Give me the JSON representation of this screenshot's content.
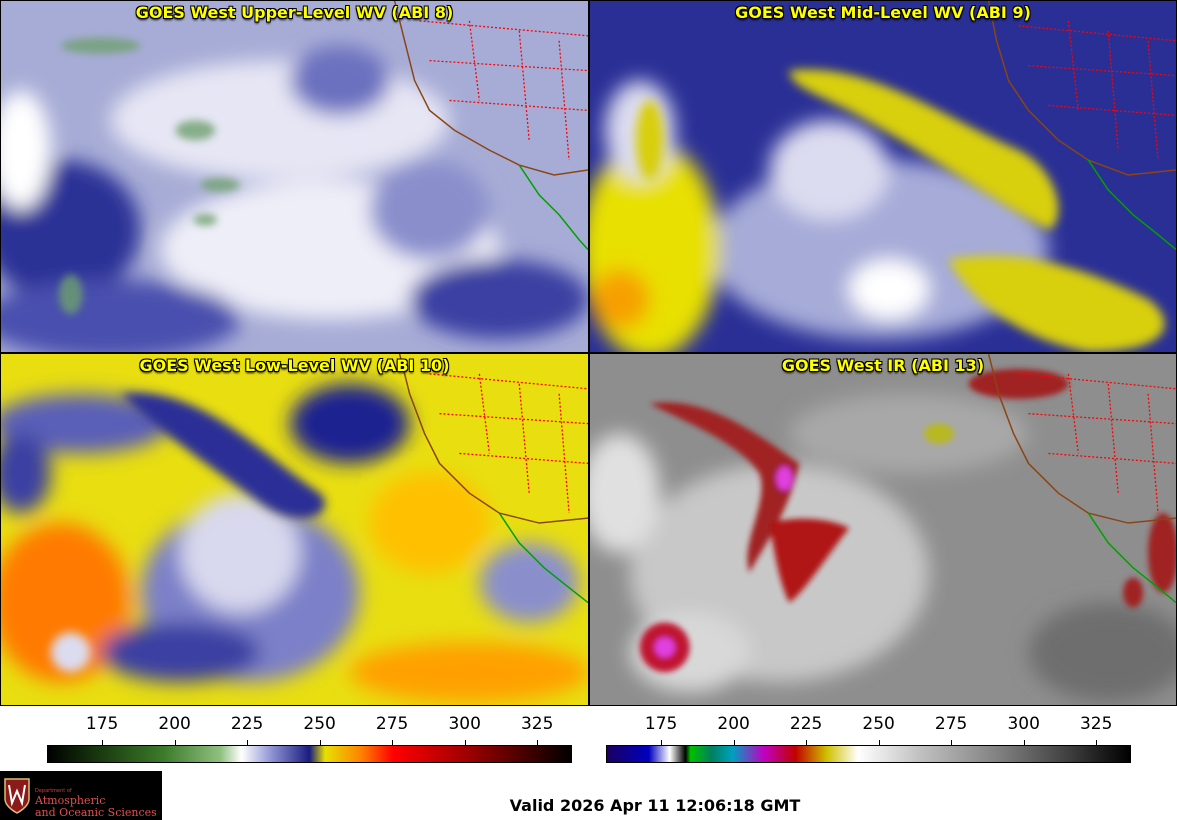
{
  "panels": [
    {
      "title": "GOES West Upper-Level WV (ABI 8)"
    },
    {
      "title": "GOES West Mid-Level WV (ABI 9)"
    },
    {
      "title": "GOES West Low-Level WV (ABI 10)"
    },
    {
      "title": "GOES West IR (ABI 13)"
    }
  ],
  "colorbars": [
    {
      "ticks": [
        "175",
        "200",
        "225",
        "250",
        "275",
        "300",
        "325"
      ],
      "values": [
        175,
        200,
        225,
        250,
        275,
        300,
        325
      ],
      "range": [
        156,
        337
      ]
    },
    {
      "ticks": [
        "175",
        "200",
        "225",
        "250",
        "275",
        "300",
        "325"
      ],
      "values": [
        175,
        200,
        225,
        250,
        275,
        300,
        325
      ],
      "range": [
        156,
        337
      ]
    }
  ],
  "logo": {
    "dept": "Department of",
    "line1": "Atmospheric",
    "line2": "and Oceanic Sciences"
  },
  "footer": {
    "valid": "Valid 2026 Apr 11 12:06:18 GMT"
  },
  "colors": {
    "title_text": "#ffff00",
    "wv_light": "#dcdcf0",
    "wv_dark": "#1c1f8a",
    "wv_yellow": "#e8e000",
    "wv_orange": "#ff6a00",
    "ir_gray": "#8c8c8c",
    "ir_red": "#c00000",
    "border_red": "#ff0000",
    "coast_brown": "#8b4513",
    "mexico_green": "#00a000"
  }
}
